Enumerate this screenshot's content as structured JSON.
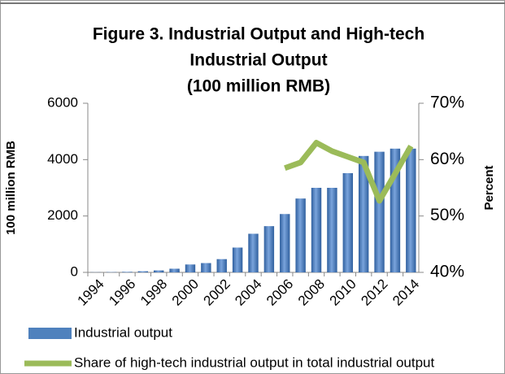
{
  "chart_data": {
    "type": "bar_line",
    "title": [
      "Figure 3. Industrial Output and High-tech",
      "Industrial Output",
      "(100 million RMB)"
    ],
    "y_label": "100 million RMB",
    "y2_label": "Percent",
    "categories": [
      "1994",
      null,
      "1996",
      null,
      "1998",
      null,
      "2000",
      null,
      "2002",
      null,
      "2004",
      null,
      "2006",
      null,
      "2008",
      null,
      "2010",
      null,
      "2012",
      null,
      "2014"
    ],
    "series": [
      {
        "name": "Industrial output",
        "color": "#4f81bd",
        "kind": "bar",
        "values": [
          5,
          10,
          20,
          40,
          70,
          130,
          280,
          330,
          470,
          880,
          1370,
          1640,
          2070,
          2620,
          3000,
          3000,
          3520,
          4130,
          4280,
          4390,
          4390
        ]
      },
      {
        "name": "Share of high-tech industrial output in total industrial output",
        "color": "#9bbb59",
        "kind": "line",
        "axis": "y2",
        "values": [
          null,
          null,
          null,
          null,
          null,
          null,
          null,
          null,
          null,
          null,
          null,
          null,
          58.5,
          59.5,
          63,
          61.5,
          60.5,
          59.5,
          52.7,
          57.5,
          62.4
        ]
      }
    ],
    "ylim": [
      0,
      6000
    ],
    "yticks": [
      0,
      2000,
      4000,
      6000
    ],
    "y2lim": [
      40,
      70
    ],
    "y2ticks": [
      {
        "value": 40,
        "label": "40%"
      },
      {
        "value": 50,
        "label": "50%"
      },
      {
        "value": 60,
        "label": "60%"
      },
      {
        "value": 70,
        "label": "70%"
      }
    ]
  }
}
